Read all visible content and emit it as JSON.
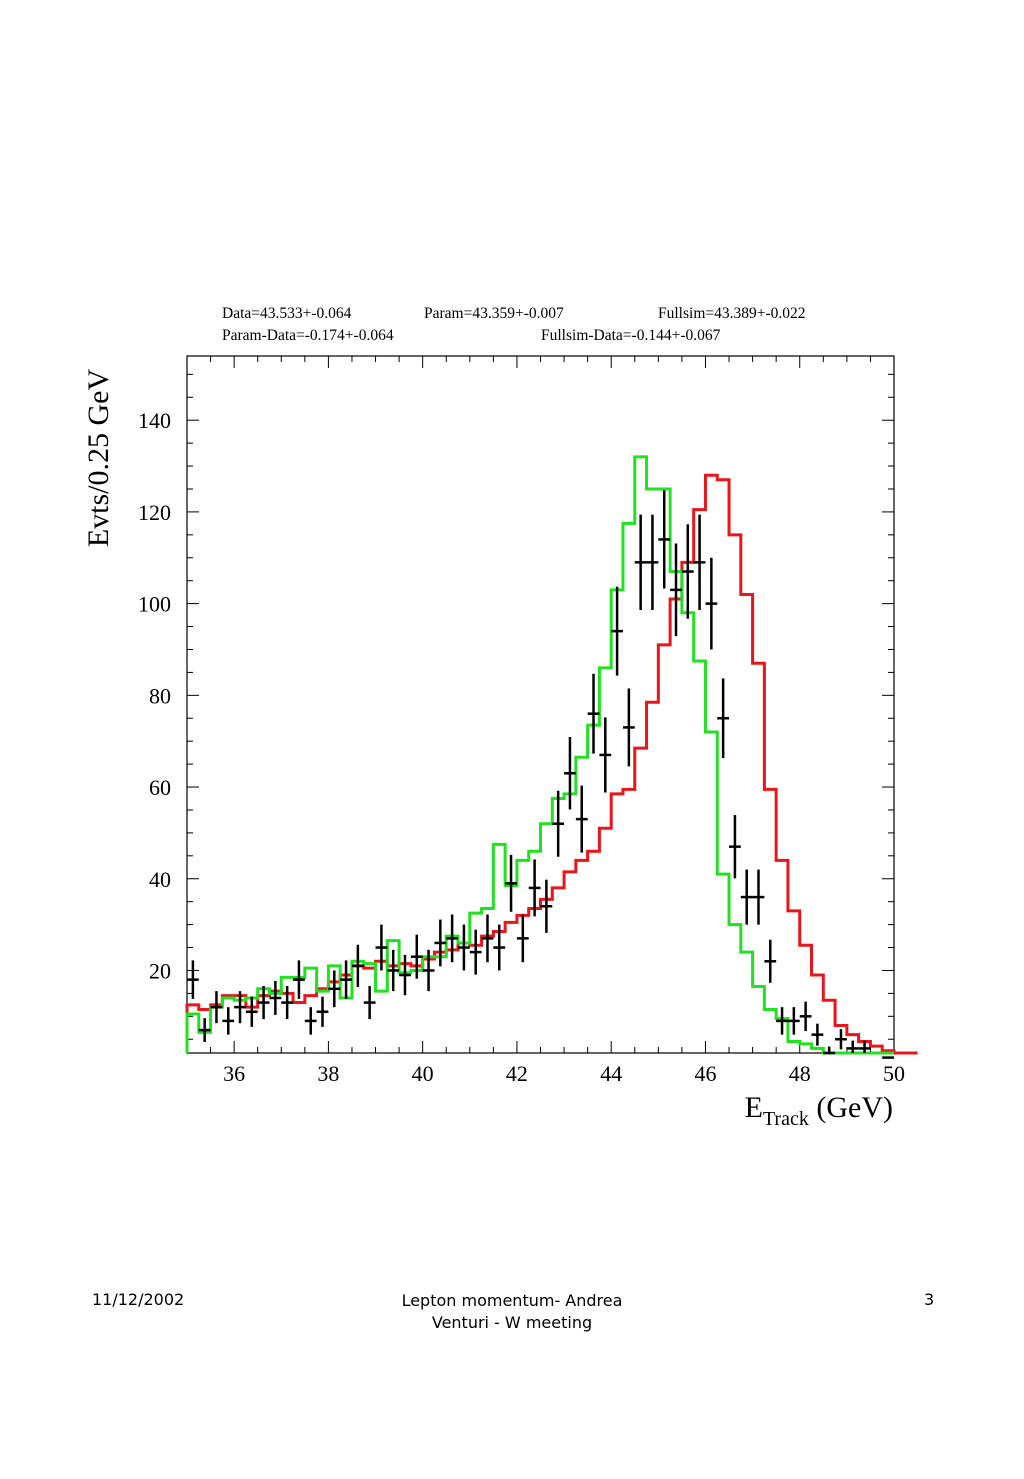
{
  "stats": {
    "data": "Data=43.533+-0.064",
    "param": "Param=43.359+-0.007",
    "fullsim": "Fullsim=43.389+-0.022",
    "param_minus_data": "Param-Data=-0.174+-0.064",
    "fullsim_minus_data": "Fullsim-Data=-0.144+-0.067"
  },
  "footer": {
    "date": "11/12/2002",
    "title_line1": "Lepton momentum- Andrea",
    "title_line2": "Venturi - W meeting",
    "page_number": "3"
  },
  "colors": {
    "data": "#000000",
    "param": "#e8151b",
    "fullsim": "#22e022",
    "frame": "#000000"
  },
  "chart_data": {
    "type": "histogram",
    "title": "",
    "xlabel_main": "E",
    "xlabel_sub": "Track",
    "xlabel_unit": "(GeV)",
    "ylabel": "Evts/0.25 GeV",
    "xlim": [
      35,
      50
    ],
    "ylim": [
      2,
      154
    ],
    "x_ticks": [
      36,
      38,
      40,
      42,
      44,
      46,
      48,
      50
    ],
    "y_ticks": [
      20,
      40,
      60,
      80,
      100,
      120,
      140
    ],
    "x_tick_labels": [
      "36",
      "38",
      "40",
      "42",
      "44",
      "46",
      "48",
      "50"
    ],
    "y_tick_labels": [
      "20",
      "40",
      "60",
      "80",
      "100",
      "120",
      "140"
    ],
    "bin_edges_start": 35,
    "bin_width": 0.25,
    "series": [
      {
        "kind": "histogram",
        "color_key": "param",
        "values": [
          12.5,
          11.5,
          12.5,
          14.5,
          14.5,
          12,
          14.5,
          15.5,
          15,
          13,
          14.5,
          16,
          17.5,
          19,
          21,
          20.5,
          22,
          21,
          21.5,
          21,
          22.5,
          24,
          24.5,
          26,
          25.5,
          27.5,
          28.5,
          30.5,
          32,
          33.5,
          35.5,
          38,
          41.5,
          44,
          46,
          51,
          58.5,
          59.5,
          68.5,
          78.5,
          91,
          101,
          109,
          120.5,
          128,
          127,
          115,
          102,
          87,
          59.5,
          44,
          33,
          25.5,
          19,
          13.5,
          8,
          6,
          4.5,
          3.5,
          2.5,
          1.5,
          1.5
        ]
      },
      {
        "kind": "histogram",
        "color_key": "fullsim",
        "values": [
          10.5,
          6.5,
          12,
          14,
          13.5,
          14,
          16,
          15,
          18.5,
          18.5,
          20.5,
          15.5,
          21,
          14,
          22,
          21.5,
          15.5,
          26.5,
          19.5,
          20,
          23,
          23,
          27.5,
          26,
          32.5,
          33.5,
          47.5,
          38.5,
          44,
          46,
          52,
          57.5,
          58.5,
          66.5,
          73.5,
          86,
          103,
          117.5,
          132,
          125,
          125,
          107,
          98,
          87.5,
          72,
          41,
          30,
          24,
          16.5,
          11.5,
          9.5,
          4.5,
          4,
          3,
          2,
          1,
          1.5,
          1.5,
          1.5,
          1.5
        ]
      },
      {
        "kind": "points",
        "color_key": "data",
        "x": [
          35.125,
          35.375,
          35.625,
          35.875,
          36.125,
          36.375,
          36.625,
          36.875,
          37.125,
          37.375,
          37.625,
          37.875,
          38.125,
          38.375,
          38.625,
          38.875,
          39.125,
          39.375,
          39.625,
          39.875,
          40.125,
          40.375,
          40.625,
          40.875,
          41.125,
          41.375,
          41.625,
          41.875,
          42.125,
          42.375,
          42.625,
          42.875,
          43.125,
          43.375,
          43.625,
          43.875,
          44.125,
          44.375,
          44.625,
          44.875,
          45.125,
          45.375,
          45.625,
          45.875,
          46.125,
          46.375,
          46.625,
          46.875,
          47.125,
          47.375,
          47.625,
          47.875,
          48.125,
          48.375,
          48.625,
          48.875,
          49.125,
          49.375,
          49.875
        ],
        "y": [
          18,
          7,
          12,
          9,
          12,
          11,
          13,
          14,
          13,
          18,
          9,
          11,
          16,
          18,
          21,
          13,
          25,
          20,
          19,
          23,
          20,
          26,
          27,
          25,
          24,
          27,
          25,
          39,
          27,
          38,
          34,
          52,
          63,
          53,
          76,
          67,
          94,
          73,
          109,
          109,
          114,
          103,
          107,
          109,
          100,
          75,
          47,
          36,
          36,
          22,
          9,
          9,
          10,
          6,
          2,
          5,
          3,
          3,
          1
        ],
        "err": [
          4.2,
          2.6,
          3.5,
          3,
          3.5,
          3.3,
          3.6,
          3.7,
          3.6,
          4.2,
          3,
          3.3,
          4,
          4.2,
          4.6,
          3.6,
          5,
          4.5,
          4.4,
          4.8,
          4.5,
          5.1,
          5.2,
          5,
          4.9,
          5.2,
          5,
          6.2,
          5.2,
          6.2,
          5.8,
          7.2,
          7.9,
          7.3,
          8.7,
          8.2,
          9.7,
          8.5,
          10.4,
          10.4,
          10.7,
          10.1,
          10.3,
          10.4,
          10,
          8.7,
          6.9,
          6,
          6,
          4.7,
          3,
          3,
          3.2,
          2.4,
          1.4,
          2.2,
          1.7,
          1.7,
          1
        ]
      }
    ]
  }
}
